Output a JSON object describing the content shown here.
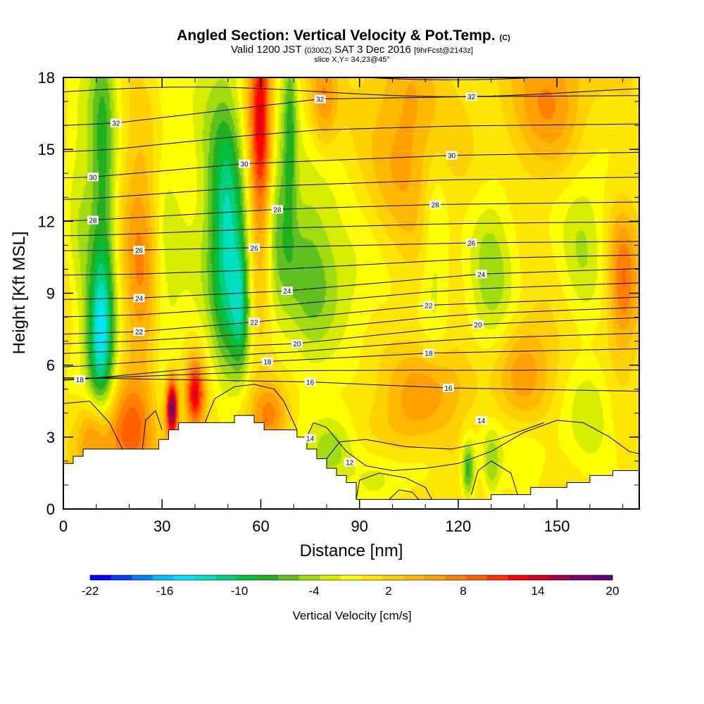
{
  "title_main": "Angled Section: Vertical Velocity & Pot.Temp.",
  "title_units": "(C)",
  "subtitle": {
    "valid": "Valid 1200 JST",
    "utc": "(0300Z)",
    "date": "SAT 3 Dec 2016",
    "forecast": "[9hrFcst@2143z]",
    "slice": "slice X,Y= 34,23@45°"
  },
  "chart_data": {
    "type": "heatmap",
    "xlabel": "Distance [nm]",
    "ylabel": "Height [Kft MSL]",
    "xlim": [
      0,
      175
    ],
    "ylim": [
      0,
      18
    ],
    "x_ticks": [
      0,
      30,
      60,
      90,
      120,
      150
    ],
    "y_ticks": [
      0,
      3,
      6,
      9,
      12,
      15,
      18
    ],
    "colorbar": {
      "label": "Vertical Velocity [cm/s]",
      "tick_labels": [
        "-22",
        "-16",
        "-10",
        "-4",
        "2",
        "8",
        "14",
        "20"
      ],
      "tick_values": [
        -22,
        -16,
        -10,
        -4,
        2,
        8,
        14,
        20
      ],
      "range": [
        -22,
        20
      ],
      "colors": [
        "#0000ff",
        "#0040ff",
        "#0080ff",
        "#00c0ff",
        "#00e5ff",
        "#00e0c0",
        "#00d080",
        "#00c040",
        "#20b020",
        "#60c020",
        "#a0dc10",
        "#d8ec00",
        "#ffff00",
        "#ffe600",
        "#ffd000",
        "#ffb800",
        "#ffa000",
        "#ff8000",
        "#ff6000",
        "#ff3000",
        "#ff0000",
        "#d00020",
        "#a00050",
        "#800070",
        "#600080"
      ]
    },
    "terrain": [
      [
        0,
        1.9
      ],
      [
        3,
        1.9
      ],
      [
        3,
        2.2
      ],
      [
        6,
        2.2
      ],
      [
        6,
        2.5
      ],
      [
        9,
        2.5
      ],
      [
        9,
        2.5
      ],
      [
        29,
        2.5
      ],
      [
        29,
        2.9
      ],
      [
        32,
        2.9
      ],
      [
        32,
        3.3
      ],
      [
        35,
        3.3
      ],
      [
        35,
        3.6
      ],
      [
        52,
        3.6
      ],
      [
        52,
        3.9
      ],
      [
        58,
        3.9
      ],
      [
        58,
        3.6
      ],
      [
        61,
        3.6
      ],
      [
        61,
        3.3
      ],
      [
        71,
        3.3
      ],
      [
        71,
        3.0
      ],
      [
        74,
        3.0
      ],
      [
        74,
        2.5
      ],
      [
        77,
        2.5
      ],
      [
        77,
        2.1
      ],
      [
        80,
        2.1
      ],
      [
        80,
        1.7
      ],
      [
        83,
        1.7
      ],
      [
        83,
        1.4
      ],
      [
        86,
        1.4
      ],
      [
        86,
        1.1
      ],
      [
        89,
        1.1
      ],
      [
        89,
        0.4
      ],
      [
        130,
        0.4
      ],
      [
        130,
        0.6
      ],
      [
        142,
        0.6
      ],
      [
        142,
        0.9
      ],
      [
        153,
        0.9
      ],
      [
        153,
        1.1
      ],
      [
        160,
        1.1
      ],
      [
        160,
        1.4
      ],
      [
        167,
        1.4
      ],
      [
        167,
        1.6
      ],
      [
        175,
        1.6
      ]
    ],
    "theta_contours": [
      {
        "value": 12,
        "label_at": [
          87,
          1.95
        ]
      },
      {
        "value": 14,
        "label_at": [
          127,
          3.7
        ]
      },
      {
        "value": 14,
        "label_at": [
          75,
          2.95
        ]
      },
      {
        "value": 16,
        "label_at": [
          75,
          5.3
        ]
      },
      {
        "value": 16,
        "label_at": [
          117,
          5.05
        ]
      },
      {
        "value": 18,
        "label_at": [
          5,
          5.4
        ]
      },
      {
        "value": 18,
        "label_at": [
          62,
          6.15
        ]
      },
      {
        "value": 18,
        "label_at": [
          111,
          6.5
        ]
      },
      {
        "value": 20,
        "label_at": [
          71,
          6.9
        ]
      },
      {
        "value": 20,
        "label_at": [
          126,
          7.7
        ]
      },
      {
        "value": 22,
        "label_at": [
          23,
          7.4
        ]
      },
      {
        "value": 22,
        "label_at": [
          58,
          7.8
        ]
      },
      {
        "value": 22,
        "label_at": [
          111,
          8.5
        ]
      },
      {
        "value": 24,
        "label_at": [
          23,
          8.8
        ]
      },
      {
        "value": 24,
        "label_at": [
          68,
          9.1
        ]
      },
      {
        "value": 24,
        "label_at": [
          127,
          9.8
        ]
      },
      {
        "value": 26,
        "label_at": [
          23,
          10.8
        ]
      },
      {
        "value": 26,
        "label_at": [
          58,
          10.9
        ]
      },
      {
        "value": 26,
        "label_at": [
          124,
          11.1
        ]
      },
      {
        "value": 28,
        "label_at": [
          9,
          12.05
        ]
      },
      {
        "value": 28,
        "label_at": [
          65,
          12.5
        ]
      },
      {
        "value": 28,
        "label_at": [
          113,
          12.7
        ]
      },
      {
        "value": 30,
        "label_at": [
          9,
          13.85
        ]
      },
      {
        "value": 30,
        "label_at": [
          55,
          14.4
        ]
      },
      {
        "value": 30,
        "label_at": [
          118,
          14.75
        ]
      },
      {
        "value": 32,
        "label_at": [
          16,
          16.1
        ]
      },
      {
        "value": 32,
        "label_at": [
          78,
          17.1
        ]
      },
      {
        "value": 32,
        "label_at": [
          124,
          17.2
        ]
      }
    ],
    "velocity_features": [
      {
        "x": 12,
        "y": 12,
        "sx": 3,
        "sy": 7,
        "v": -9
      },
      {
        "x": 11,
        "y": 7,
        "sx": 3,
        "sy": 2,
        "v": -9
      },
      {
        "x": 5,
        "y": 12,
        "sx": 3,
        "sy": 4,
        "v": -4
      },
      {
        "x": 24,
        "y": 10,
        "sx": 4,
        "sy": 4,
        "v": 6
      },
      {
        "x": 31,
        "y": 11,
        "sx": 4,
        "sy": 5,
        "v": -4
      },
      {
        "x": 50,
        "y": 11,
        "sx": 3.5,
        "sy": 4,
        "v": -10
      },
      {
        "x": 46,
        "y": 14,
        "sx": 6,
        "sy": 5,
        "v": -5
      },
      {
        "x": 54,
        "y": 8.5,
        "sx": 2,
        "sy": 2,
        "v": -8
      },
      {
        "x": 60,
        "y": 16,
        "sx": 2.5,
        "sy": 4,
        "v": 13
      },
      {
        "x": 65,
        "y": 13,
        "sx": 3,
        "sy": 4,
        "v": -5
      },
      {
        "x": 69,
        "y": 16,
        "sx": 1.5,
        "sy": 3,
        "v": -6
      },
      {
        "x": 74,
        "y": 10,
        "sx": 6,
        "sy": 4,
        "v": -5
      },
      {
        "x": 85,
        "y": 9.5,
        "sx": 10,
        "sy": 2,
        "v": -4
      },
      {
        "x": 79,
        "y": 17,
        "sx": 3,
        "sy": 1.5,
        "v": 6
      },
      {
        "x": 113,
        "y": 11,
        "sx": 3,
        "sy": 3,
        "v": -4
      },
      {
        "x": 130,
        "y": 10,
        "sx": 5,
        "sy": 3,
        "v": -5
      },
      {
        "x": 158,
        "y": 11,
        "sx": 5,
        "sy": 3,
        "v": -4
      },
      {
        "x": 104,
        "y": 16,
        "sx": 8,
        "sy": 3,
        "v": 5
      },
      {
        "x": 148,
        "y": 17,
        "sx": 8,
        "sy": 2,
        "v": 5
      },
      {
        "x": 170,
        "y": 9.5,
        "sx": 3,
        "sy": 2,
        "v": 7
      },
      {
        "x": 33,
        "y": 4.2,
        "sx": 1.3,
        "sy": 0.9,
        "v": 19
      },
      {
        "x": 40,
        "y": 4.8,
        "sx": 2,
        "sy": 1,
        "v": 13
      },
      {
        "x": 20,
        "y": 3.2,
        "sx": 5,
        "sy": 1.5,
        "v": 7
      },
      {
        "x": 10,
        "y": 3.0,
        "sx": 4,
        "sy": 1.2,
        "v": 9
      },
      {
        "x": 63,
        "y": 4.0,
        "sx": 4,
        "sy": 1.0,
        "v": 7
      },
      {
        "x": 82,
        "y": 2.6,
        "sx": 5,
        "sy": 1.0,
        "v": -5
      },
      {
        "x": 95,
        "y": 1.2,
        "sx": 6,
        "sy": 1.0,
        "v": -4
      },
      {
        "x": 123,
        "y": 1.6,
        "sx": 1.5,
        "sy": 0.9,
        "v": -9
      },
      {
        "x": 130,
        "y": 1.8,
        "sx": 2,
        "sy": 1,
        "v": -5
      },
      {
        "x": 112,
        "y": 5.2,
        "sx": 9,
        "sy": 1.2,
        "v": 5
      },
      {
        "x": 140,
        "y": 5.8,
        "sx": 6,
        "sy": 1.5,
        "v": 5
      },
      {
        "x": 160,
        "y": 4.2,
        "sx": 5,
        "sy": 1.5,
        "v": -4
      },
      {
        "x": 140,
        "y": 2.7,
        "sx": 8,
        "sy": 1.2,
        "v": -3
      },
      {
        "x": 101,
        "y": 3.2,
        "sx": 8,
        "sy": 1.2,
        "v": 3
      },
      {
        "x": 110,
        "y": 2.0,
        "sx": 6,
        "sy": 0.8,
        "v": -2
      }
    ]
  }
}
